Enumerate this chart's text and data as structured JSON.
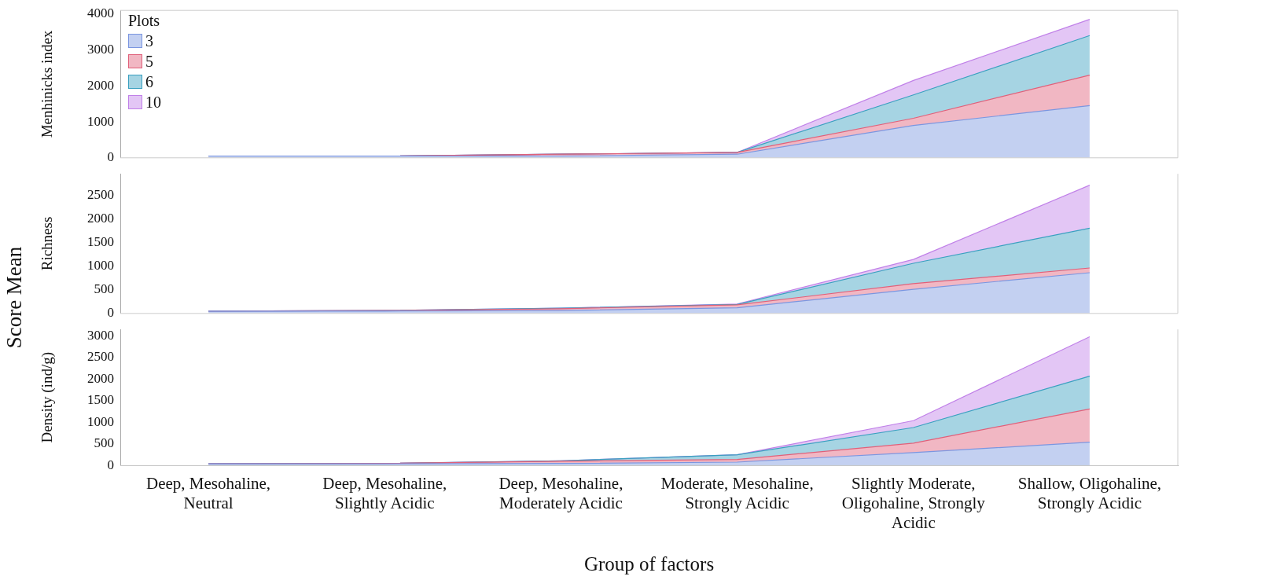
{
  "chart_data": [
    {
      "type": "area",
      "stacked": true,
      "ylabel": "Menhinicks index",
      "legend": "top left",
      "legend_title": "Plots",
      "tick_labels": "y",
      "ylim": [
        0,
        4100
      ],
      "yticks": [
        0,
        1000,
        2000,
        3000,
        4000
      ],
      "series": [
        {
          "name": "3",
          "color": "#7b96e0",
          "values": [
            50,
            50,
            50,
            100,
            900,
            1450
          ]
        },
        {
          "name": "5",
          "color": "#e0607a",
          "values": [
            0,
            0,
            50,
            50,
            200,
            850
          ]
        },
        {
          "name": "6",
          "color": "#3aa0c0",
          "values": [
            0,
            0,
            0,
            0,
            650,
            1100
          ]
        },
        {
          "name": "10",
          "color": "#c080e8",
          "values": [
            0,
            0,
            0,
            0,
            400,
            450
          ]
        }
      ]
    },
    {
      "type": "area",
      "stacked": true,
      "ylabel": "Richness",
      "tick_labels": "y",
      "annotations": [
        "Score Mean"
      ],
      "ylim": [
        0,
        2950
      ],
      "yticks": [
        0,
        500,
        1000,
        1500,
        2000,
        2500
      ],
      "series": [
        {
          "name": "3",
          "color": "#7b96e0",
          "values": [
            50,
            50,
            60,
            120,
            510,
            860
          ]
        },
        {
          "name": "5",
          "color": "#e0607a",
          "values": [
            0,
            10,
            40,
            60,
            120,
            100
          ]
        },
        {
          "name": "6",
          "color": "#3aa0c0",
          "values": [
            0,
            0,
            10,
            10,
            430,
            840
          ]
        },
        {
          "name": "10",
          "color": "#c080e8",
          "values": [
            0,
            0,
            0,
            10,
            80,
            910
          ]
        }
      ]
    },
    {
      "type": "area",
      "stacked": true,
      "ylabel": "Density (ind/g)",
      "xlabel": "Group of factors",
      "categories": [
        "Deep, Mesohaline, Neutral",
        "Deep, Mesohaline, Slightly Acidic",
        "Deep, Mesohaline, Moderately Acidic",
        "Moderate, Mesohaline, Strongly Acidic",
        "Slightly Moderate, Oligohaline, Strongly Acidic",
        "Shallow, Oligohaline, Strongly Acidic"
      ],
      "ylim": [
        0,
        3150
      ],
      "yticks": [
        0,
        500,
        1000,
        1500,
        2000,
        2500,
        3000
      ],
      "series": [
        {
          "name": "3",
          "color": "#7b96e0",
          "values": [
            40,
            40,
            50,
            80,
            300,
            540
          ]
        },
        {
          "name": "5",
          "color": "#e0607a",
          "values": [
            0,
            10,
            50,
            60,
            220,
            770
          ]
        },
        {
          "name": "6",
          "color": "#3aa0c0",
          "values": [
            0,
            0,
            10,
            110,
            360,
            760
          ]
        },
        {
          "name": "10",
          "color": "#c080e8",
          "values": [
            0,
            0,
            0,
            0,
            160,
            910
          ]
        }
      ]
    }
  ]
}
